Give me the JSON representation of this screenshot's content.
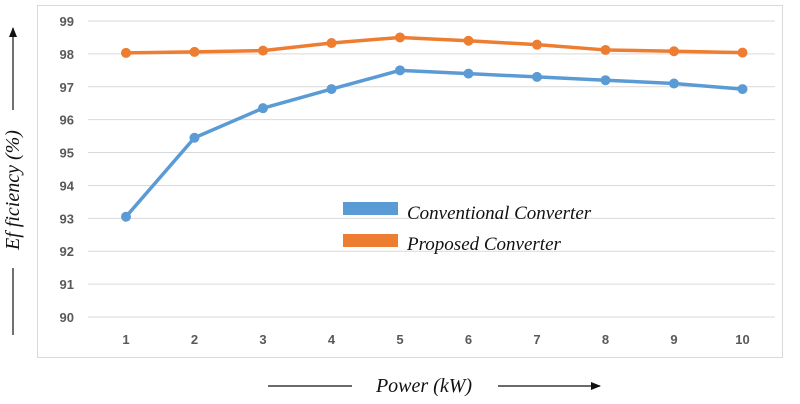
{
  "chart_data": {
    "type": "line",
    "x": [
      1,
      2,
      3,
      4,
      5,
      6,
      7,
      8,
      9,
      10
    ],
    "series": [
      {
        "name": "Conventional Converter",
        "color": "#5b9bd5",
        "values": [
          93.05,
          95.45,
          96.35,
          96.93,
          97.5,
          97.4,
          97.3,
          97.2,
          97.1,
          96.93
        ]
      },
      {
        "name": "Proposed Converter",
        "color": "#ed7d31",
        "values": [
          98.03,
          98.06,
          98.1,
          98.33,
          98.5,
          98.4,
          98.28,
          98.12,
          98.08,
          98.04
        ]
      }
    ],
    "ylim": [
      90,
      99
    ],
    "yticks": [
      90,
      91,
      92,
      93,
      94,
      95,
      96,
      97,
      98,
      99
    ],
    "xticks": [
      1,
      2,
      3,
      4,
      5,
      6,
      7,
      8,
      9,
      10
    ],
    "xlabel": "Power (kW)",
    "ylabel": "Ef ficiency (%)",
    "grid": true,
    "legend_position": "center-right"
  }
}
